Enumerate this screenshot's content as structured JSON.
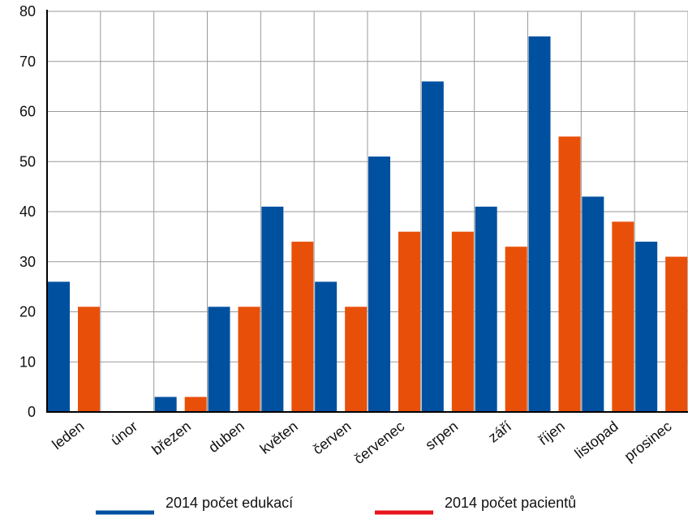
{
  "chart_data": {
    "type": "bar",
    "categories": [
      "leden",
      "únor",
      "březen",
      "duben",
      "květen",
      "červen",
      "červenec",
      "srpen",
      "září",
      "říjen",
      "listopad",
      "prosinec"
    ],
    "series": [
      {
        "name": "2014  počet edukací",
        "color": "#0050a0",
        "values": [
          26,
          0,
          3,
          21,
          41,
          26,
          51,
          66,
          41,
          75,
          43,
          34
        ]
      },
      {
        "name": "2014  počet pacientů",
        "color": "#e8500a",
        "legend_color": "#e8141e",
        "values": [
          21,
          0,
          3,
          21,
          34,
          21,
          36,
          36,
          33,
          55,
          38,
          31
        ]
      }
    ],
    "yticks": [
      0,
      10,
      20,
      30,
      40,
      50,
      60,
      70,
      80
    ],
    "ylim": [
      0,
      80
    ],
    "grid": true,
    "legend_position": "bottom",
    "colors": {
      "grid": "#999999",
      "axis": "#000000",
      "plot_background": "#ffffff"
    }
  }
}
